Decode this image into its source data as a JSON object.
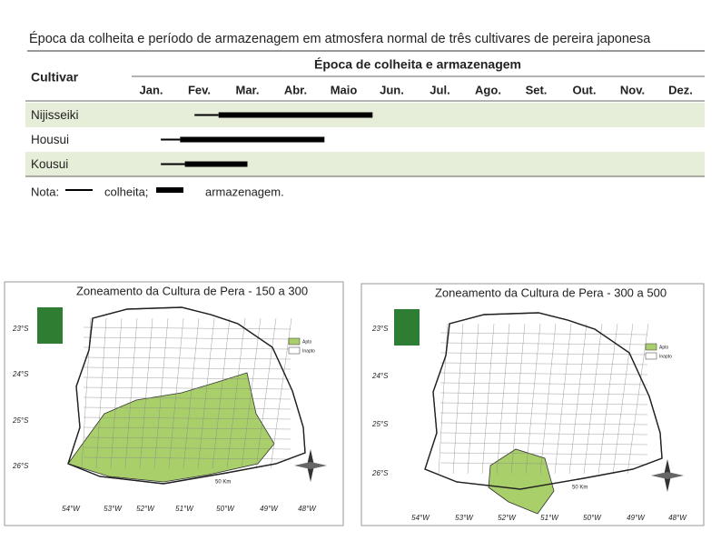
{
  "title": "Época da colheita e período de armazenagem em atmosfera normal de três cultivares de pereira japonesa",
  "table": {
    "header": {
      "cultivar": "Cultivar",
      "period": "Época de colheita e armazenagem",
      "months": [
        "Jan.",
        "Fev.",
        "Mar.",
        "Abr.",
        "Maio",
        "Jun.",
        "Jul.",
        "Ago.",
        "Set.",
        "Out.",
        "Nov.",
        "Dez."
      ]
    },
    "rows": [
      {
        "cultivar": "Nijisseiki",
        "harvest": [
          1.4,
          1.9
        ],
        "storage": [
          1.9,
          5.1
        ]
      },
      {
        "cultivar": "Housui",
        "harvest": [
          0.7,
          1.1
        ],
        "storage": [
          1.1,
          4.1
        ]
      },
      {
        "cultivar": "Kousui",
        "harvest": [
          0.7,
          1.2
        ],
        "storage": [
          1.2,
          2.5
        ]
      }
    ]
  },
  "note": {
    "label": "Nota:",
    "harvest": "colheita;",
    "storage": "armazenagem."
  },
  "maps": [
    {
      "title": "Zoneamento da Cultura de Pera - 150 a 300",
      "lat_labels": [
        "23°S",
        "24°S",
        "25°S",
        "26°S"
      ],
      "lon_labels": [
        "54°W",
        "53°W",
        "52°W",
        "51°W",
        "50°W",
        "49°W",
        "48°W"
      ],
      "legend": [
        "Apto",
        "Inapto"
      ],
      "scale": "50 Km"
    },
    {
      "title": "Zoneamento da Cultura de Pera - 300 a 500",
      "lat_labels": [
        "23°S",
        "24°S",
        "25°S",
        "26°S"
      ],
      "lon_labels": [
        "54°W",
        "53°W",
        "52°W",
        "51°W",
        "50°W",
        "49°W",
        "48°W"
      ],
      "legend": [
        "Apto",
        "Inapto"
      ],
      "scale": "50 Km"
    }
  ]
}
